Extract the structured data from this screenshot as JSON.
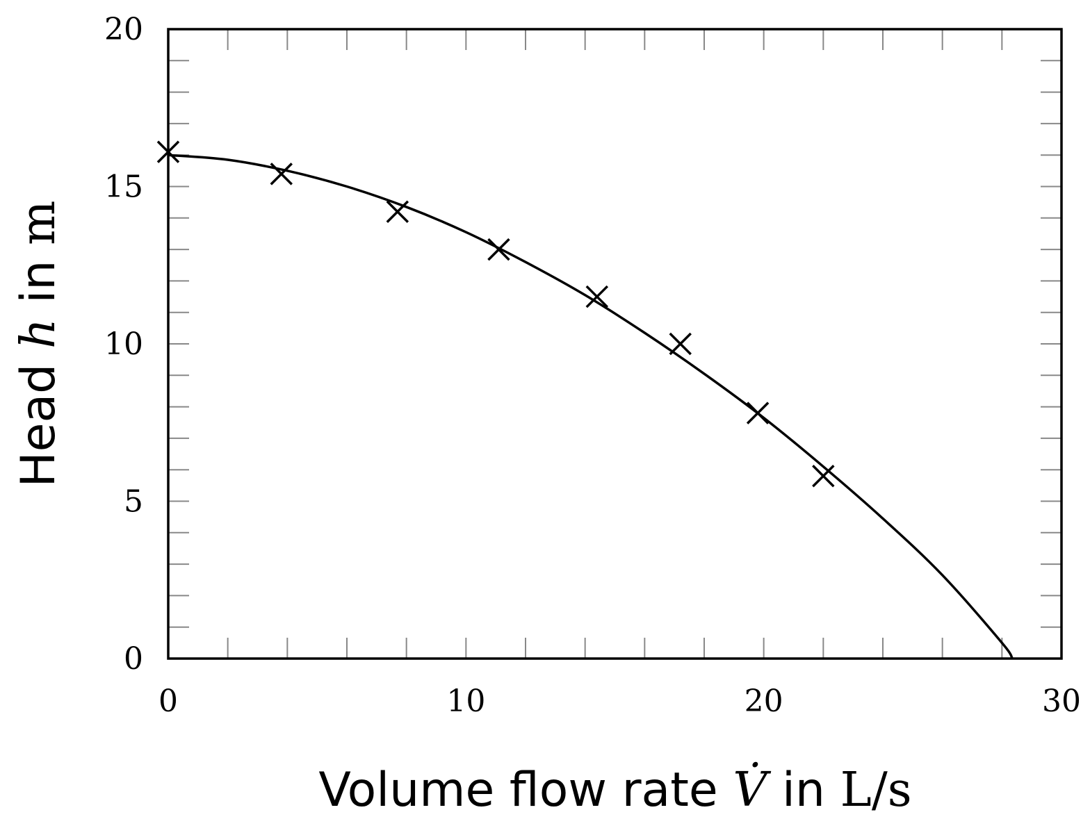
{
  "chart_data": {
    "type": "scatter",
    "title": "",
    "xlabel": {
      "prefix": "Volume flow rate ",
      "symbol": "V̇",
      "middle": " in ",
      "unit": "L/s"
    },
    "ylabel": {
      "prefix": "Head ",
      "symbol": "h",
      "middle": " in ",
      "unit": "m"
    },
    "xlim": [
      0,
      30
    ],
    "ylim": [
      0,
      20
    ],
    "x_ticks": [
      0,
      10,
      20,
      30
    ],
    "y_ticks": [
      0,
      5,
      10,
      15,
      20
    ],
    "x_minor_step": 2,
    "y_minor_step": 1,
    "grid": false,
    "marker": "x",
    "series": [
      {
        "type": "scatter",
        "x": [
          0,
          3.8,
          7.7,
          11.1,
          14.4,
          17.2,
          19.8,
          22.0
        ],
        "y": [
          16.1,
          15.4,
          14.2,
          13.0,
          11.5,
          10.0,
          7.8,
          5.8
        ]
      },
      {
        "type": "line",
        "x": [
          0,
          2,
          4,
          6,
          8,
          10,
          12,
          14,
          16,
          18,
          20,
          22,
          24,
          26,
          28,
          28.35
        ],
        "y": [
          16.0,
          15.85,
          15.5,
          15.0,
          14.35,
          13.55,
          12.6,
          11.55,
          10.35,
          9.05,
          7.65,
          6.1,
          4.45,
          2.65,
          0.5,
          0
        ]
      }
    ]
  }
}
